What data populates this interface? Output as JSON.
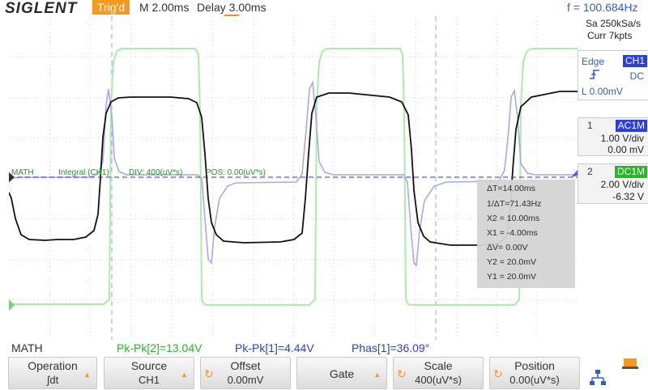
{
  "header": {
    "brand": "SIGLENT",
    "trigger_status": "Trig'd",
    "timebase": "M 2.00ms",
    "delay": "Delay 3.00ms",
    "frequency": "f = 100.684Hz"
  },
  "acquisition": {
    "sample_rate": "Sa 250kSa/s",
    "memory": "Curr 7kpts"
  },
  "trigger": {
    "type": "Edge",
    "source": "CH1",
    "slope_icon": "rising-edge-icon",
    "coupling": "DC",
    "level": "L  0.00mV"
  },
  "channels": [
    {
      "number": "1",
      "coupling": "AC1M",
      "scale": "1.00 V/div",
      "offset": "0.00 mV",
      "color": "#2e3fd8"
    },
    {
      "number": "2",
      "coupling": "DC1M",
      "scale": "2.00 V/div",
      "offset": "-6.32 V",
      "color": "#1c9a1c"
    }
  ],
  "math_label": {
    "name": "MATH",
    "func": "Integral (CH1)",
    "div": "DIV: 400(uV*s)",
    "pos": "POS: 0.00(uV*s)"
  },
  "measurements": {
    "delta_t": "ΔT=14.00ms",
    "inv_delta_t": "1/ΔT=71.43Hz",
    "x2": "X2 = 10.00ms",
    "x1": "X1 = -4.00ms",
    "delta_v": "ΔV= 0.00V",
    "y2": "Y2 = 20.0mV",
    "y1": "Y1 = 20.0mV"
  },
  "status_line": {
    "source": "MATH",
    "pkpk2": "Pk-Pk[2]=13.04V",
    "pkpk1": "Pk-Pk[1]=4.44V",
    "phase": "Phas[1]=36.09°"
  },
  "softkeys": [
    {
      "label": "Operation",
      "value": "∫dt",
      "arrow": true,
      "knob": false
    },
    {
      "label": "Source",
      "value": "CH1",
      "arrow": true,
      "knob": false
    },
    {
      "label": "Offset",
      "value": "0.00mV",
      "arrow": false,
      "knob": true
    },
    {
      "label": "Gate",
      "value": "",
      "arrow": true,
      "knob": false
    },
    {
      "label": "Scale",
      "value": "400(uV*s)",
      "arrow": false,
      "knob": true
    },
    {
      "label": "Position",
      "value": "0.00(uV*s)",
      "arrow": false,
      "knob": true
    }
  ],
  "colors": {
    "ch1": "#a9a7ef",
    "ch2": "#a8eda8",
    "math": "#111111",
    "cursor": "#9c9af0",
    "accent": "#f39a1f"
  }
}
